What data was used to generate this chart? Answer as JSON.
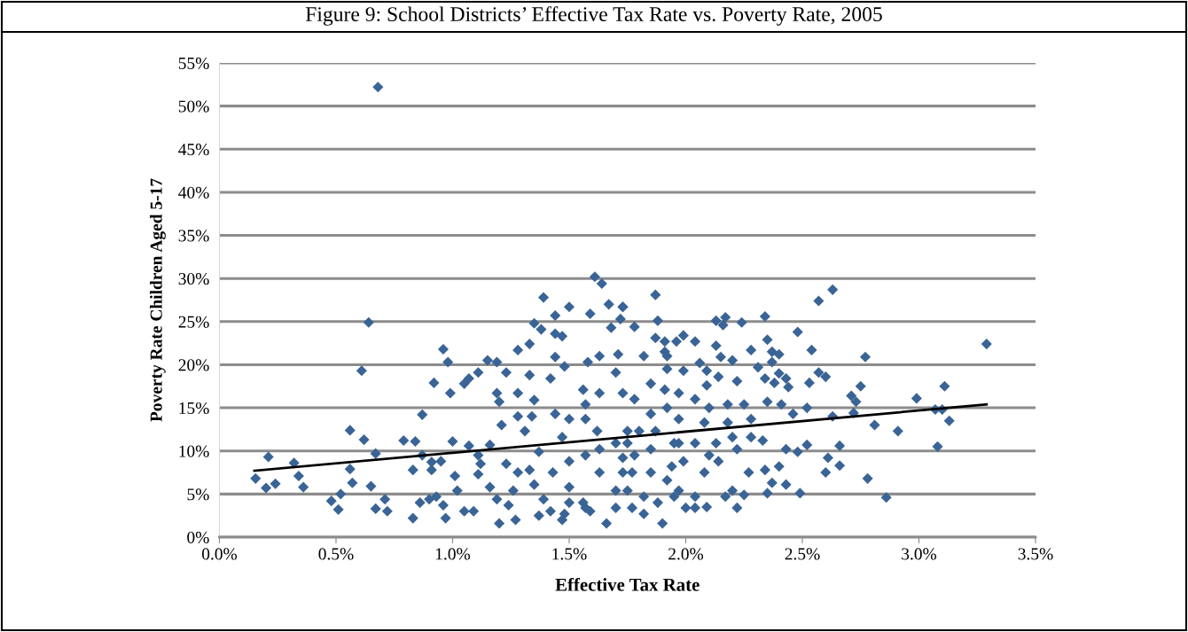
{
  "chart_data": {
    "type": "scatter",
    "title": "Figure 9: School Districts’ Effective Tax Rate vs. Poverty Rate, 2005",
    "xlabel": "Effective Tax Rate",
    "ylabel": "Poverty Rate Children Aged 5-17",
    "xlim": [
      0,
      3.5
    ],
    "xticks": [
      {
        "value": 0,
        "label": "0.0%"
      },
      {
        "value": 0.5,
        "label": "0.5%"
      },
      {
        "value": 1,
        "label": "1.0%"
      },
      {
        "value": 1.5,
        "label": "1.5%"
      },
      {
        "value": 2,
        "label": "2.0%"
      },
      {
        "value": 2.5,
        "label": "2.5%"
      },
      {
        "value": 3,
        "label": "3.0%"
      },
      {
        "value": 3.5,
        "label": "3.5%"
      }
    ],
    "ylim": [
      0,
      55
    ],
    "yticks": [
      {
        "value": 0,
        "label": "0%"
      },
      {
        "value": 5,
        "label": "5%"
      },
      {
        "value": 10,
        "label": "10%"
      },
      {
        "value": 15,
        "label": "15%"
      },
      {
        "value": 20,
        "label": "20%"
      },
      {
        "value": 25,
        "label": "25%"
      },
      {
        "value": 30,
        "label": "30%"
      },
      {
        "value": 35,
        "label": "35%"
      },
      {
        "value": 40,
        "label": "40%"
      },
      {
        "value": 45,
        "label": "45%"
      },
      {
        "value": 50,
        "label": "50%"
      },
      {
        "value": 55,
        "label": "55%"
      }
    ],
    "grid": "y",
    "series": [
      {
        "color": "#3a6496",
        "marker": "diamond",
        "x": [
          0.155,
          0.21,
          0.2,
          0.24,
          0.32,
          0.34,
          0.36,
          0.48,
          0.52,
          0.51,
          0.56,
          0.56,
          0.57,
          0.61,
          0.64,
          0.62,
          0.65,
          0.67,
          0.72,
          0.71,
          0.67,
          0.68,
          0.83,
          0.83,
          0.87,
          0.79,
          0.84,
          0.87,
          0.91,
          0.91,
          0.95,
          0.92,
          0.96,
          0.98,
          0.99,
          0.86,
          0.9,
          0.93,
          0.96,
          0.97,
          1.0,
          1.01,
          1.02,
          1.05,
          1.09,
          1.05,
          1.07,
          1.11,
          1.07,
          1.11,
          1.12,
          1.11,
          1.15,
          1.19,
          1.23,
          1.16,
          1.23,
          1.19,
          1.2,
          1.21,
          1.16,
          1.19,
          1.2,
          1.26,
          1.27,
          1.24,
          1.28,
          1.33,
          1.35,
          1.38,
          1.39,
          1.44,
          1.5,
          1.59,
          1.61,
          1.64,
          1.28,
          1.33,
          1.35,
          1.28,
          1.34,
          1.31,
          1.37,
          1.33,
          1.28,
          1.35,
          1.37,
          1.42,
          1.39,
          1.44,
          1.48,
          1.42,
          1.44,
          1.47,
          1.44,
          1.5,
          1.47,
          1.43,
          1.5,
          1.47,
          1.56,
          1.57,
          1.63,
          1.58,
          1.63,
          1.62,
          1.7,
          1.57,
          1.63,
          1.7,
          1.56,
          1.66,
          1.59,
          1.67,
          1.73,
          1.68,
          1.72,
          1.71,
          1.7,
          1.73,
          1.5,
          1.57,
          1.48,
          1.7,
          1.73,
          1.75,
          1.57,
          1.63,
          1.5,
          1.73,
          1.87,
          1.73,
          1.88,
          1.78,
          1.87,
          1.91,
          1.96,
          1.99,
          2.04,
          1.82,
          1.91,
          1.92,
          1.92,
          1.99,
          2.06,
          2.09,
          2.13,
          2.17,
          2.16,
          2.24,
          2.34,
          2.35,
          2.28,
          2.37,
          2.4,
          2.13,
          2.15,
          2.2,
          2.14,
          2.09,
          2.22,
          2.31,
          2.37,
          2.34,
          2.4,
          2.43,
          2.44,
          2.38,
          2.48,
          2.54,
          2.63,
          2.57,
          2.57,
          2.6,
          2.53,
          2.77,
          2.75,
          2.71,
          2.73,
          3.29,
          3.11,
          2.99,
          3.07,
          3.1,
          3.13,
          3.08,
          2.91,
          2.81,
          2.86,
          2.78,
          2.72,
          2.63,
          2.66,
          2.61,
          2.66,
          2.6,
          2.49,
          2.43,
          2.48,
          2.52,
          2.46,
          2.52,
          2.35,
          2.37,
          2.34,
          2.4,
          2.43,
          2.33,
          2.28,
          2.35,
          2.41,
          2.28,
          2.27,
          2.22,
          2.2,
          2.17,
          2.25,
          2.09,
          2.04,
          2.0,
          1.9,
          1.92,
          1.97,
          2.04,
          2.08,
          2.1,
          2.04,
          1.97,
          2.13,
          2.2,
          2.22,
          2.14,
          2.04,
          2.1,
          2.18,
          2.25,
          2.18,
          2.08,
          1.97,
          1.85,
          1.91,
          1.97,
          1.78,
          1.85,
          1.92,
          1.8,
          1.75,
          1.78,
          1.87,
          1.85,
          1.95,
          1.77,
          1.85,
          1.94,
          1.99,
          1.75,
          1.82,
          1.88,
          1.77,
          1.82,
          1.95
        ],
        "values": [
          6.8,
          9.3,
          5.7,
          6.2,
          8.6,
          7.1,
          5.8,
          4.2,
          5.0,
          3.2,
          12.4,
          7.9,
          6.3,
          19.3,
          24.9,
          11.3,
          5.9,
          3.3,
          3.0,
          4.4,
          9.7,
          52.2,
          2.2,
          7.8,
          14.2,
          11.2,
          11.1,
          9.5,
          8.7,
          7.8,
          8.8,
          17.9,
          21.8,
          20.3,
          16.7,
          4.0,
          4.4,
          4.7,
          3.7,
          2.2,
          11.1,
          7.1,
          5.4,
          3.0,
          3.0,
          17.8,
          18.4,
          19.1,
          10.6,
          9.5,
          8.5,
          7.3,
          20.5,
          20.3,
          19.1,
          10.7,
          8.5,
          16.7,
          15.7,
          13.0,
          5.8,
          4.4,
          1.6,
          5.4,
          2.0,
          3.7,
          21.7,
          22.4,
          24.8,
          24.1,
          27.8,
          25.7,
          26.7,
          25.9,
          30.2,
          29.4,
          16.7,
          18.8,
          15.9,
          14.0,
          14.0,
          12.3,
          9.9,
          7.8,
          7.5,
          6.1,
          2.5,
          3.0,
          4.4,
          20.9,
          19.8,
          18.4,
          23.6,
          23.3,
          14.3,
          13.7,
          11.6,
          7.5,
          5.8,
          2.0,
          17.1,
          15.4,
          16.7,
          20.3,
          21.0,
          12.3,
          10.9,
          9.5,
          7.5,
          5.4,
          4.0,
          1.6,
          3.0,
          27.0,
          26.7,
          24.3,
          25.3,
          21.2,
          19.1,
          16.7,
          4.0,
          3.4,
          2.7,
          3.4,
          7.5,
          12.3,
          13.7,
          10.2,
          8.8,
          9.2,
          28.1,
          26.7,
          25.1,
          24.4,
          23.1,
          22.7,
          22.7,
          23.4,
          22.7,
          21.0,
          21.5,
          21.0,
          19.5,
          19.3,
          20.2,
          19.3,
          25.1,
          25.5,
          24.6,
          24.9,
          25.6,
          22.9,
          21.7,
          21.5,
          21.2,
          22.2,
          20.9,
          20.5,
          18.6,
          17.6,
          18.1,
          19.7,
          20.3,
          18.4,
          19.0,
          18.4,
          17.4,
          17.9,
          23.8,
          21.7,
          28.7,
          27.4,
          19.1,
          18.6,
          17.9,
          20.9,
          17.5,
          16.4,
          15.7,
          22.4,
          17.5,
          16.1,
          14.8,
          14.8,
          13.5,
          10.5,
          12.3,
          13.0,
          4.6,
          6.8,
          14.4,
          14.0,
          10.6,
          9.2,
          8.3,
          7.5,
          5.1,
          6.1,
          9.9,
          10.7,
          14.3,
          15.0,
          5.1,
          6.3,
          7.8,
          8.2,
          10.2,
          11.2,
          11.6,
          15.7,
          15.4,
          13.7,
          7.5,
          3.4,
          5.4,
          4.7,
          4.9,
          3.5,
          3.4,
          3.4,
          1.6,
          6.6,
          5.4,
          4.7,
          7.5,
          9.5,
          10.9,
          10.9,
          10.9,
          11.6,
          10.2,
          8.8,
          16.0,
          15.0,
          15.4,
          15.4,
          13.3,
          13.3,
          13.7,
          17.8,
          17.1,
          16.7,
          16.0,
          14.3,
          15.0,
          12.3,
          10.9,
          9.5,
          12.3,
          10.2,
          10.9,
          7.5,
          7.5,
          8.2,
          8.8,
          5.4,
          4.7,
          4.0,
          3.4,
          2.7,
          4.7
        ]
      },
      {
        "type": "line",
        "color": "#000000",
        "x": [
          0.15,
          3.29
        ],
        "values": [
          7.7,
          15.4
        ]
      }
    ]
  }
}
